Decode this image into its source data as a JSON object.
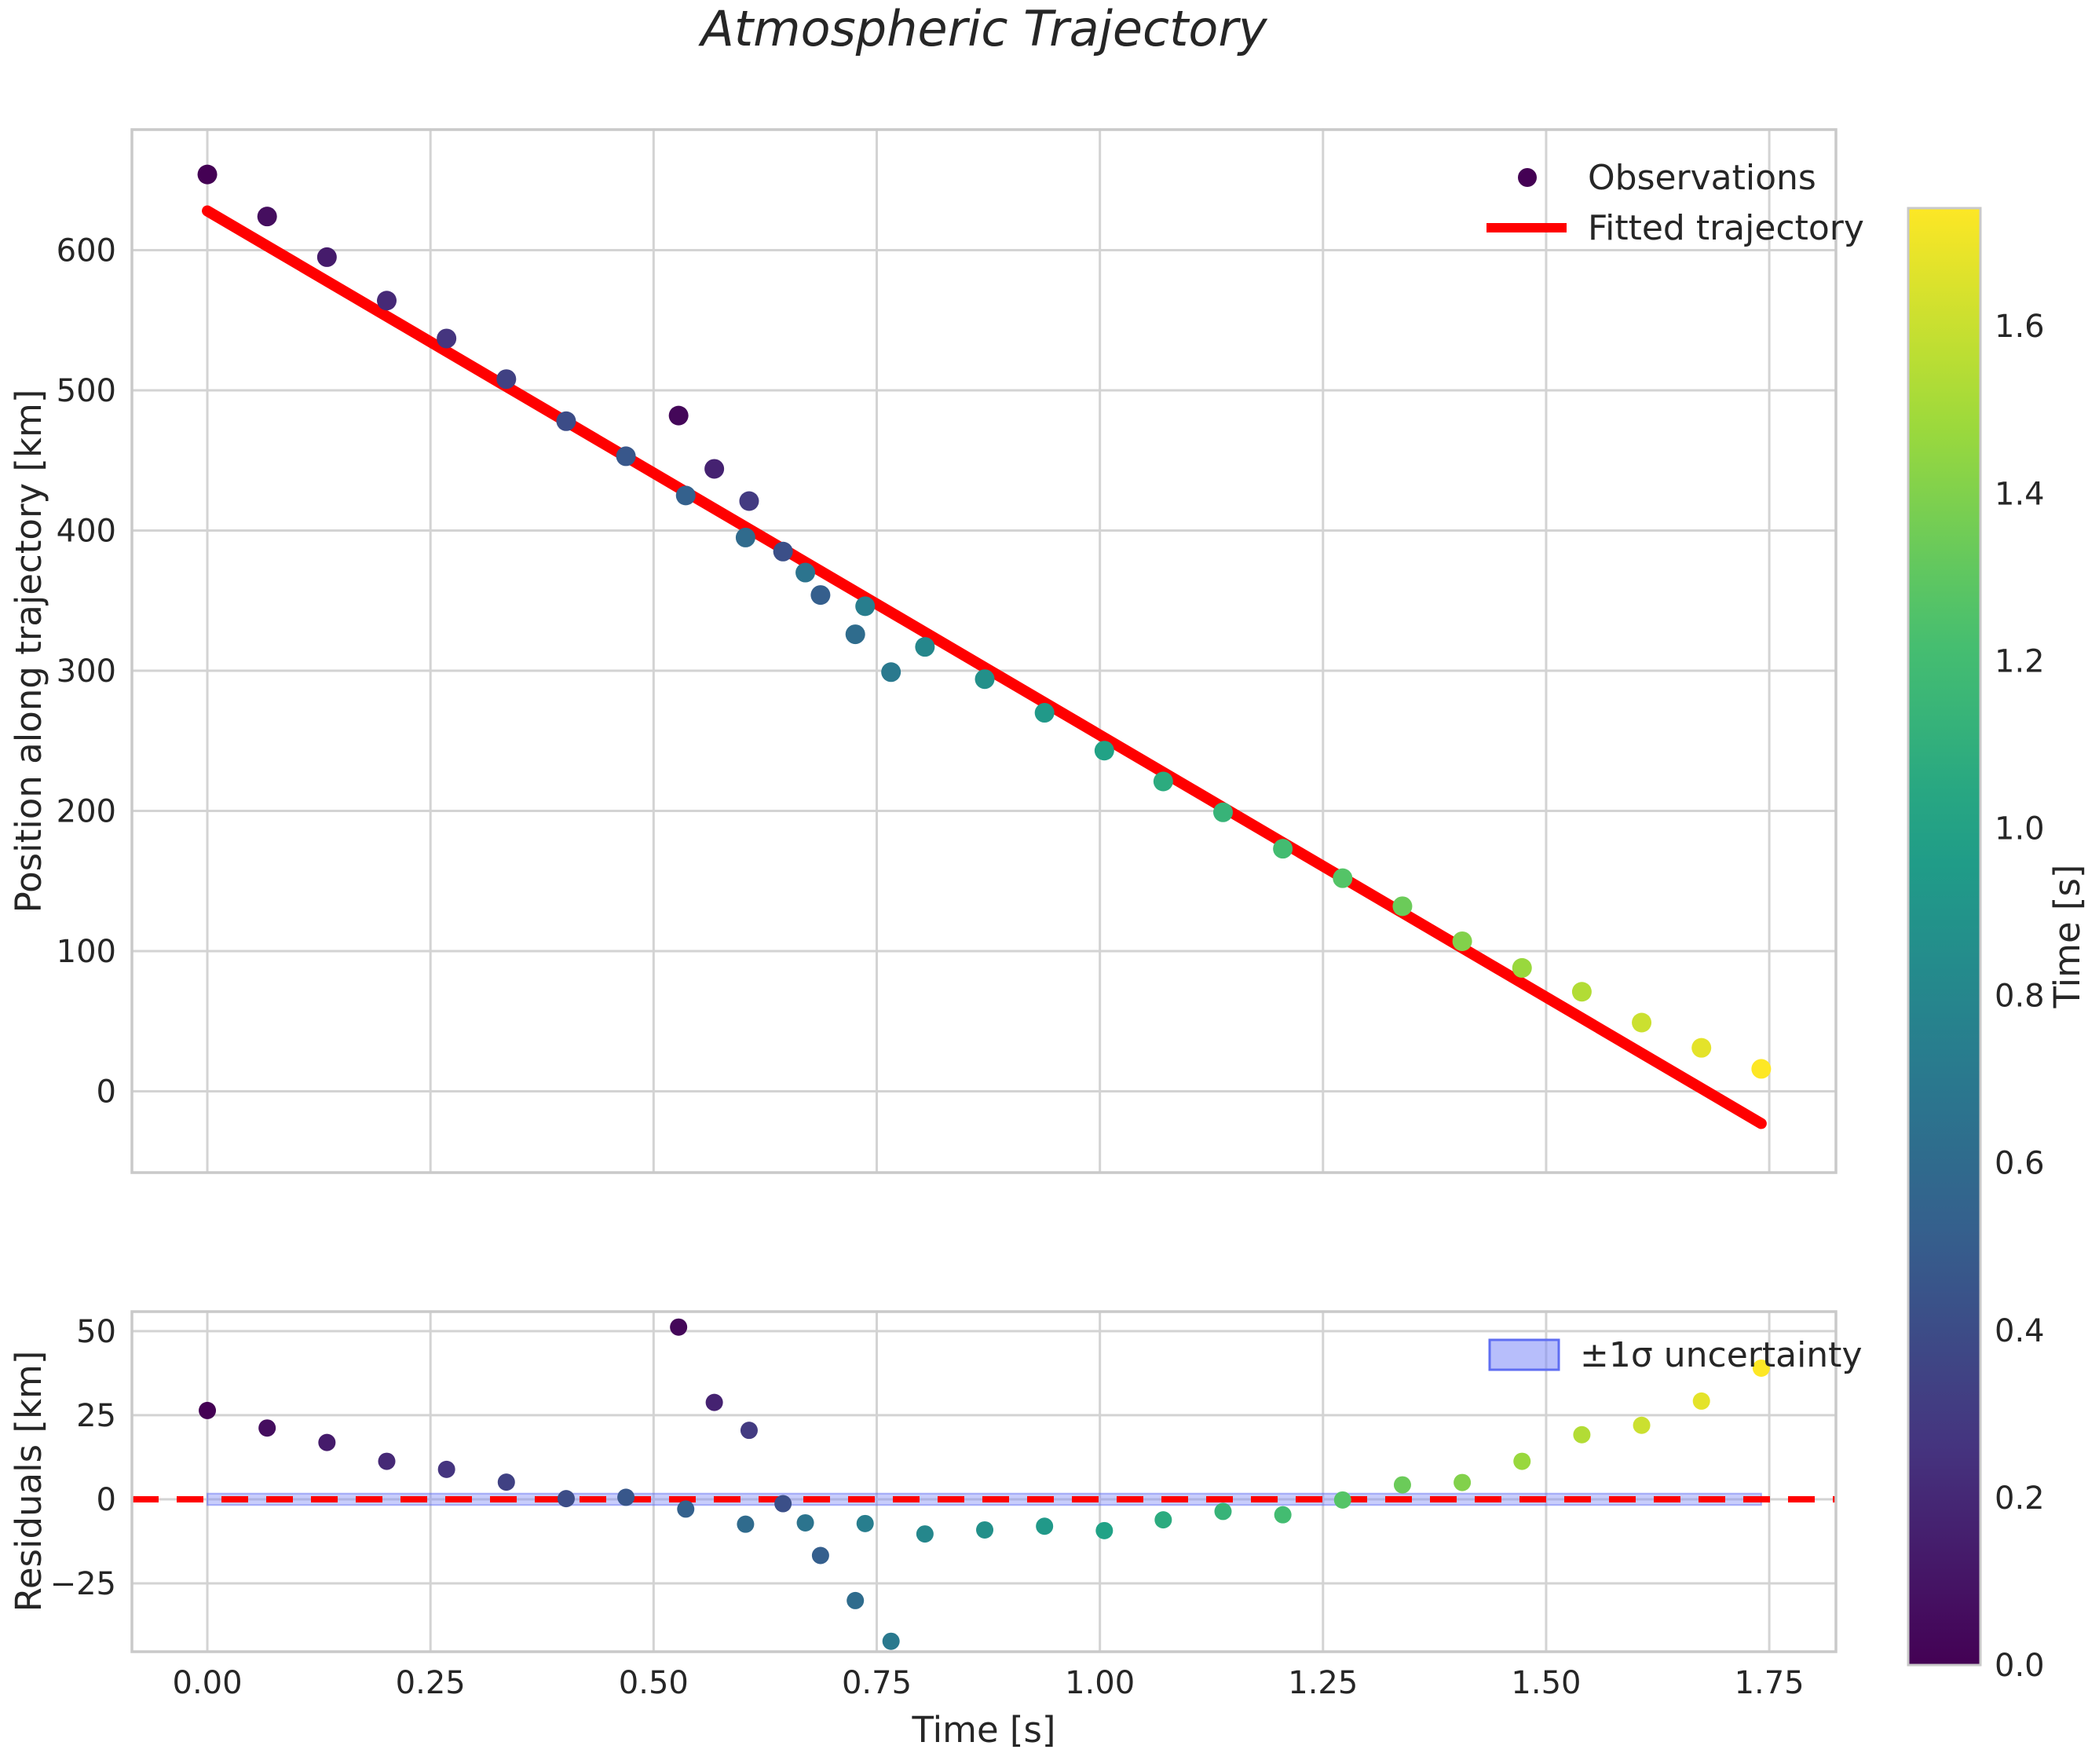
{
  "title": "Atmospheric Trajectory",
  "top_panel": {
    "ylabel": "Position along trajectory [km]",
    "ytick_labels": [
      "0",
      "100",
      "200",
      "300",
      "400",
      "500",
      "600"
    ],
    "ytick_values": [
      0,
      100,
      200,
      300,
      400,
      500,
      600
    ],
    "ylim": [
      -58,
      686
    ],
    "legend": {
      "observations": "Observations",
      "fitted": "Fitted trajectory"
    }
  },
  "residual_panel": {
    "ylabel": "Residuals [km]",
    "ytick_labels": [
      "−25",
      "0",
      "25",
      "50"
    ],
    "ytick_values": [
      -25,
      0,
      25,
      50
    ],
    "ylim": [
      -45.3,
      55.8
    ],
    "legend_label": "±1σ uncertainty",
    "band_halfwidth_km": 1.7
  },
  "xaxis": {
    "label": "Time [s]",
    "tick_labels": [
      "0.00",
      "0.25",
      "0.50",
      "0.75",
      "1.00",
      "1.25",
      "1.50",
      "1.75"
    ],
    "tick_values": [
      0,
      0.25,
      0.5,
      0.75,
      1.0,
      1.25,
      1.5,
      1.75
    ],
    "xlim": [
      -0.0845,
      1.8247
    ]
  },
  "colorbar": {
    "label": "Time [s]",
    "tick_labels": [
      "0.0",
      "0.2",
      "0.4",
      "0.6",
      "0.8",
      "1.0",
      "1.2",
      "1.4",
      "1.6"
    ],
    "tick_values": [
      0,
      0.2,
      0.4,
      0.6,
      0.8,
      1.0,
      1.2,
      1.4,
      1.6
    ],
    "range": [
      0,
      1.741
    ],
    "colormap": "viridis"
  },
  "style_colors": {
    "grid": "#d3d3d3",
    "spine": "#c9c9c9",
    "fit_line": "#ff0000",
    "zero_line": "#ff0000",
    "band_fill": "#7b88f8",
    "band_edge": "#5f6ef2",
    "text": "#262626",
    "legend_marker": "#440154"
  },
  "chart_data": {
    "type": "scatter",
    "title": "Atmospheric Trajectory",
    "xlabel": "Time [s]",
    "ylabel_top": "Position along trajectory [km]",
    "ylabel_bottom": "Residuals [km]",
    "colormap": "viridis",
    "color_range_s": [
      0,
      1.741
    ],
    "fit_line": {
      "t_start": 0.0,
      "pos_start": 628,
      "t_end": 1.741,
      "pos_end": -23
    },
    "columns": [
      "time_s",
      "position_km",
      "residual_km",
      "color_time_s"
    ],
    "observations": [
      [
        0.0,
        654,
        26.4,
        0.0
      ],
      [
        0.067,
        624,
        21.2,
        0.067
      ],
      [
        0.134,
        595,
        16.9,
        0.134
      ],
      [
        0.201,
        564,
        11.3,
        0.201
      ],
      [
        0.268,
        537,
        8.9,
        0.268
      ],
      [
        0.335,
        508,
        5.1,
        0.335
      ],
      [
        0.402,
        478,
        0.2,
        0.402
      ],
      [
        0.469,
        453,
        0.6,
        0.469
      ],
      [
        0.528,
        482,
        51.2,
        0.03
      ],
      [
        0.536,
        425,
        -2.9,
        0.536
      ],
      [
        0.568,
        444,
        28.8,
        0.17
      ],
      [
        0.603,
        395,
        -7.4,
        0.603
      ],
      [
        0.607,
        421,
        20.5,
        0.3
      ],
      [
        0.645,
        385,
        -1.3,
        0.42
      ],
      [
        0.67,
        370,
        -7.0,
        0.67
      ],
      [
        0.687,
        354,
        -16.7,
        0.52
      ],
      [
        0.726,
        326,
        -30.1,
        0.61
      ],
      [
        0.737,
        346,
        -7.2,
        0.737
      ],
      [
        0.766,
        299,
        -42.2,
        0.7
      ],
      [
        0.804,
        317,
        -10.3,
        0.804
      ],
      [
        0.871,
        294,
        -9.1,
        0.871
      ],
      [
        0.938,
        270,
        -8.0,
        0.938
      ],
      [
        1.005,
        243,
        -9.3,
        1.005
      ],
      [
        1.071,
        221,
        -6.1,
        1.071
      ],
      [
        1.138,
        199,
        -3.6,
        1.138
      ],
      [
        1.205,
        173,
        -4.6,
        1.205
      ],
      [
        1.272,
        152,
        -0.2,
        1.272
      ],
      [
        1.339,
        132,
        4.3,
        1.339
      ],
      [
        1.406,
        107,
        5.0,
        1.406
      ],
      [
        1.473,
        88,
        11.3,
        1.473
      ],
      [
        1.54,
        71,
        19.2,
        1.54
      ],
      [
        1.607,
        49,
        22.0,
        1.607
      ],
      [
        1.674,
        31,
        29.2,
        1.674
      ],
      [
        1.741,
        16,
        39.0,
        1.741
      ]
    ],
    "viridis_anchors": [
      "#440154",
      "#46327e",
      "#365c8d",
      "#277f8e",
      "#1fa187",
      "#4ac16d",
      "#a0da39",
      "#fde725"
    ]
  }
}
